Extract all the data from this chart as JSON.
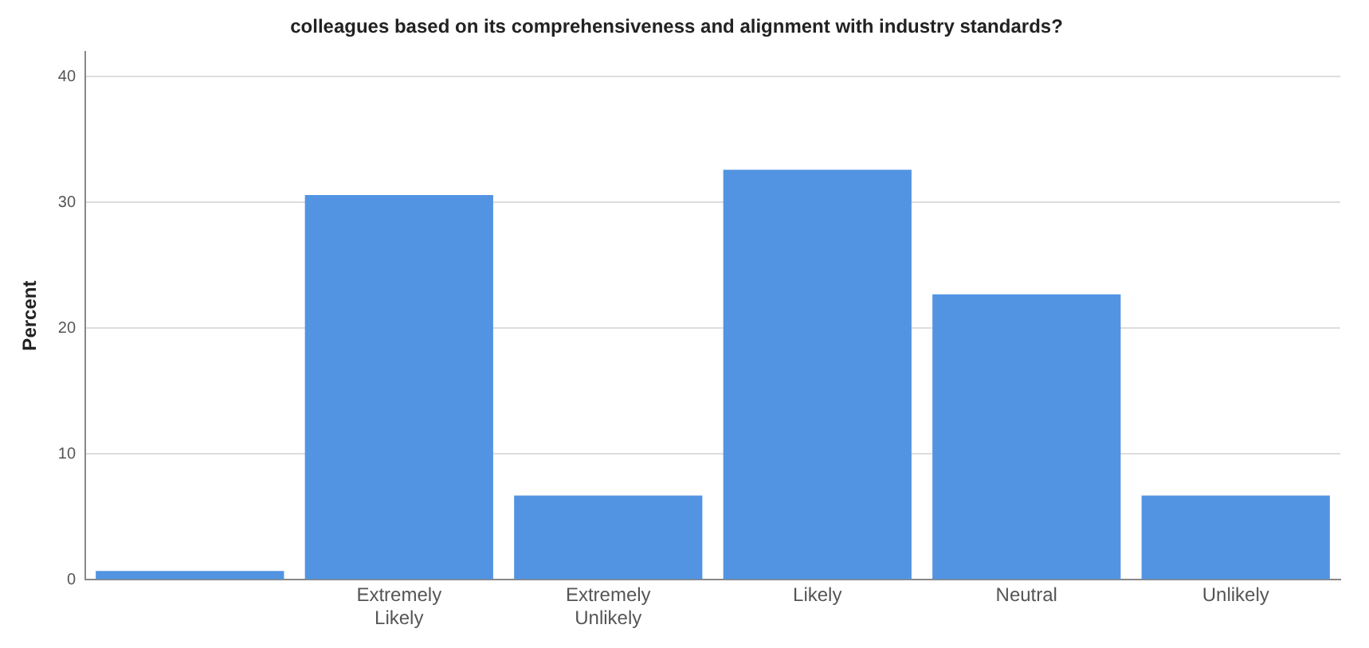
{
  "chart_data": {
    "type": "bar",
    "title": "colleagues based on its comprehensiveness and alignment with industry standards?",
    "ylabel": "Percent",
    "categories": [
      null,
      "Extremely Likely",
      "Extremely Unlikely",
      "Likely",
      "Neutral",
      "Unlikely"
    ],
    "values": [
      0.7,
      30.6,
      6.7,
      32.6,
      22.7,
      6.7
    ],
    "color": "#5294e2",
    "ylim": [
      0,
      42
    ],
    "yticks": [
      0,
      10,
      20,
      30,
      40
    ],
    "grid": "y",
    "legend": false
  }
}
